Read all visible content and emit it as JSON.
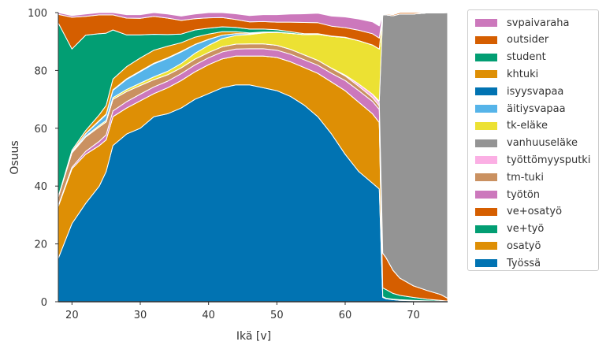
{
  "chart_data": {
    "type": "area",
    "stacked": true,
    "xlabel": "Ikä [v]",
    "ylabel": "Osuus",
    "xlim": [
      18,
      75
    ],
    "ylim": [
      0,
      100
    ],
    "xticks": [
      20,
      30,
      40,
      50,
      60,
      70
    ],
    "yticks": [
      0,
      20,
      40,
      60,
      80,
      100
    ],
    "grid": false,
    "legend_position": "outside-right",
    "x": [
      18,
      20,
      22,
      24,
      25,
      26,
      28,
      30,
      32,
      34,
      36,
      38,
      40,
      42,
      44,
      46,
      48,
      50,
      52,
      54,
      56,
      58,
      60,
      62,
      64,
      65,
      65.5,
      66,
      67,
      68,
      70,
      72,
      74,
      75
    ],
    "series": [
      {
        "name": "Työssä",
        "color": "#0173b2",
        "values": [
          15,
          27,
          34,
          40,
          45,
          54,
          58,
          60,
          64,
          65,
          67,
          70,
          72,
          74,
          75,
          75,
          74,
          73,
          71,
          68,
          64,
          58,
          51,
          45,
          41,
          39,
          1.5,
          1,
          0.7,
          0.5,
          0.3,
          0.2,
          0.1,
          0
        ]
      },
      {
        "name": "osatyö",
        "color": "#de8f05",
        "values": [
          18,
          19,
          17,
          14,
          11,
          10,
          9,
          9.5,
          8,
          9,
          9.5,
          9.5,
          10,
          10,
          10,
          10,
          11,
          11.5,
          12,
          13,
          15,
          18,
          22,
          24,
          24,
          23,
          0.3,
          0.2,
          0.2,
          0.2,
          0.2,
          0.1,
          0.1,
          0
        ]
      },
      {
        "name": "ve+työ",
        "color": "#029e73",
        "values": [
          0,
          0,
          0,
          0,
          0,
          0,
          0,
          0,
          0,
          0,
          0,
          0,
          0,
          0,
          0,
          0,
          0,
          0,
          0,
          0,
          0,
          0,
          0,
          0,
          0,
          0,
          3,
          3,
          2,
          1.5,
          1,
          0.6,
          0.3,
          0.2
        ]
      },
      {
        "name": "ve+osatyö",
        "color": "#d55e00",
        "values": [
          0,
          0,
          0,
          0,
          0,
          0,
          0,
          0,
          0,
          0,
          0,
          0,
          0,
          0,
          0,
          0,
          0,
          0,
          0,
          0,
          0,
          0,
          0,
          0,
          0,
          0,
          12,
          11,
          8,
          6,
          4,
          3,
          2,
          1
        ]
      },
      {
        "name": "työtön",
        "color": "#cc78bc",
        "values": [
          0.3,
          0.5,
          1,
          1.5,
          1.7,
          2,
          2.2,
          2.3,
          2.3,
          2.3,
          2.4,
          2.4,
          2.4,
          2.4,
          2.4,
          2.5,
          2.5,
          2.5,
          2.6,
          2.7,
          2.8,
          3,
          3.5,
          4,
          4.3,
          4.5,
          0,
          0,
          0,
          0,
          0,
          0,
          0,
          0
        ]
      },
      {
        "name": "tm-tuki",
        "color": "#ca9161",
        "values": [
          3,
          5,
          5,
          5,
          4.5,
          4,
          3.5,
          3,
          2.5,
          2.2,
          2,
          2,
          1.8,
          1.8,
          1.7,
          1.7,
          1.7,
          1.7,
          1.7,
          1.7,
          1.7,
          1.7,
          1.6,
          1.5,
          1.3,
          1.2,
          0,
          0,
          0,
          0,
          0,
          0,
          0,
          0
        ]
      },
      {
        "name": "työttömyysputki",
        "color": "#fbafe4",
        "values": [
          0,
          0,
          0,
          0,
          0,
          0,
          0,
          0,
          0,
          0,
          0,
          0,
          0,
          0,
          0,
          0,
          0,
          0,
          0,
          0,
          0,
          0.1,
          0.3,
          0.8,
          1.2,
          1.2,
          0,
          0,
          0,
          0,
          0,
          0,
          0,
          0
        ]
      },
      {
        "name": "vanhuuseläke",
        "color": "#949494",
        "values": [
          0,
          0,
          0,
          0,
          0,
          0,
          0,
          0,
          0,
          0,
          0,
          0,
          0,
          0,
          0,
          0,
          0,
          0,
          0,
          0,
          0,
          0,
          0,
          0,
          0,
          0.5,
          82.5,
          84,
          88,
          91.3,
          94,
          96,
          97.4,
          98.8
        ]
      },
      {
        "name": "tk-eläke",
        "color": "#ece133",
        "values": [
          0.1,
          0.2,
          0.3,
          0.5,
          0.5,
          0.6,
          0.7,
          0.8,
          1,
          1.2,
          1.5,
          2,
          2.5,
          2.8,
          3,
          3.2,
          3.8,
          4.5,
          5.5,
          7,
          9,
          11,
          13,
          15,
          17,
          18,
          0,
          0,
          0,
          0,
          0,
          0,
          0,
          0
        ]
      },
      {
        "name": "äitiysvapaa",
        "color": "#56b4e9",
        "values": [
          0,
          0.2,
          0.8,
          1.5,
          2,
          2.5,
          3.5,
          4,
          4.5,
          4.5,
          4,
          3,
          2,
          1.2,
          0.6,
          0.3,
          0.1,
          0,
          0,
          0,
          0,
          0,
          0,
          0,
          0,
          0,
          0,
          0,
          0,
          0,
          0,
          0,
          0,
          0
        ]
      },
      {
        "name": "isyysvapaa",
        "color": "#0173b2",
        "values": [
          0,
          0,
          0.1,
          0.2,
          0.2,
          0.2,
          0.2,
          0.2,
          0.2,
          0.2,
          0.2,
          0.1,
          0.1,
          0,
          0,
          0,
          0,
          0,
          0,
          0,
          0,
          0,
          0,
          0,
          0,
          0,
          0,
          0,
          0,
          0,
          0,
          0,
          0,
          0
        ]
      },
      {
        "name": "khtuki",
        "color": "#de8f05",
        "values": [
          0,
          0.5,
          1,
          2,
          3,
          3.7,
          4.2,
          4.5,
          4.5,
          4,
          3,
          2.5,
          1.8,
          1.2,
          0.7,
          0.3,
          0.2,
          0.1,
          0.1,
          0,
          0,
          0,
          0,
          0,
          0,
          0,
          0,
          0,
          0,
          0,
          0,
          0,
          0,
          0
        ]
      },
      {
        "name": "student",
        "color": "#029e73",
        "values": [
          60,
          35,
          33,
          28,
          25,
          17,
          11,
          8,
          5.5,
          4,
          3,
          2.5,
          2,
          1.7,
          1.5,
          1.3,
          1,
          0.8,
          0.5,
          0.3,
          0.2,
          0.1,
          0.1,
          0,
          0,
          0,
          0,
          0,
          0,
          0,
          0,
          0,
          0,
          0
        ]
      },
      {
        "name": "outsider",
        "color": "#d55e00",
        "values": [
          3,
          11,
          6.5,
          6.5,
          6.3,
          5.2,
          5.8,
          5.7,
          6.2,
          5.7,
          4.7,
          3.9,
          3.6,
          3.2,
          2.7,
          2.5,
          2.6,
          2.6,
          3.3,
          3.9,
          3.8,
          3.4,
          3.3,
          3.6,
          3.9,
          3.8,
          0.2,
          0.3,
          0.4,
          0.5,
          0.5,
          0.1,
          0.1,
          0
        ]
      },
      {
        "name": "svpaivaraha",
        "color": "#cc78bc",
        "values": [
          0.6,
          0.6,
          0.8,
          1,
          1,
          1.1,
          1.2,
          1.3,
          1.3,
          1.4,
          1.5,
          1.6,
          1.8,
          1.9,
          2,
          2.2,
          2.4,
          2.6,
          2.8,
          3,
          3.3,
          3.5,
          3.7,
          3.9,
          4.1,
          4.2,
          0,
          0,
          0,
          0,
          0,
          0,
          0,
          0
        ]
      }
    ]
  }
}
